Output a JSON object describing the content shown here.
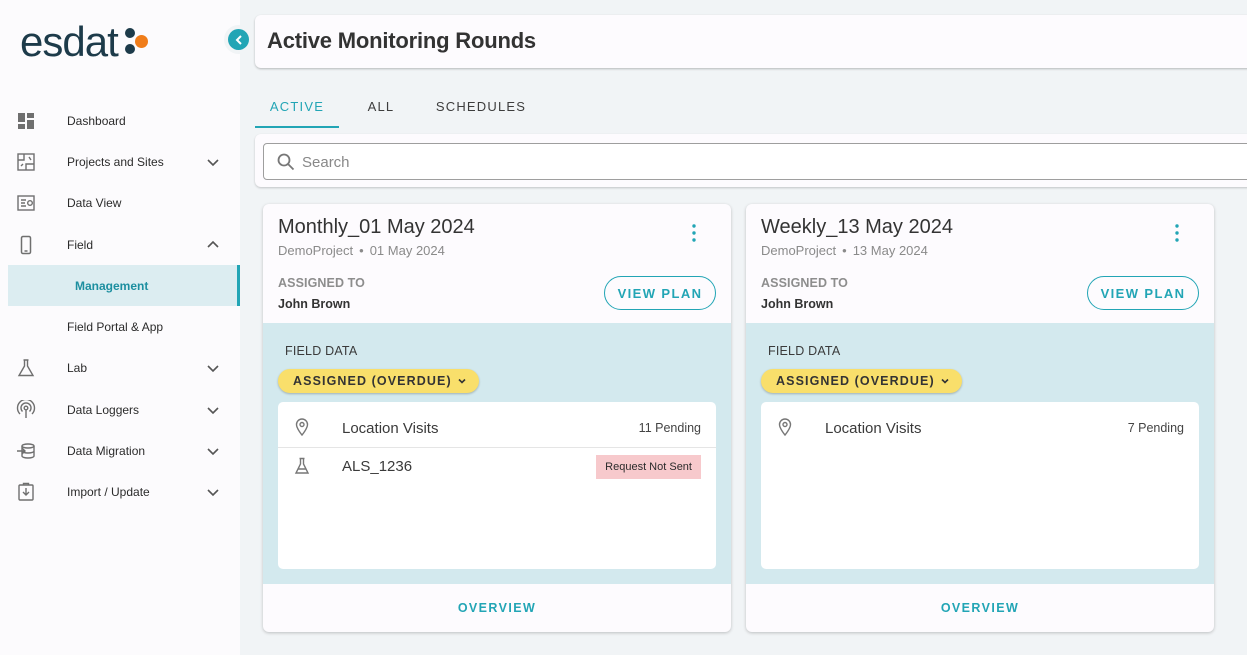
{
  "brand": {
    "logo_text": "esdat",
    "accent": "#22a5b5",
    "logo_dot_color": "#f07d1a"
  },
  "sidebar": {
    "items": [
      {
        "label": "Dashboard",
        "icon": "dashboard-icon",
        "expandable": false
      },
      {
        "label": "Projects and Sites",
        "icon": "map-icon",
        "expandable": true
      },
      {
        "label": "Data View",
        "icon": "data-view-icon",
        "expandable": false
      },
      {
        "label": "Field",
        "icon": "mobile-icon",
        "expandable": true,
        "expanded": true
      },
      {
        "label": "Management",
        "sub": true,
        "active": true
      },
      {
        "label": "Field Portal & App",
        "sub": true
      },
      {
        "label": "Lab",
        "icon": "flask-icon",
        "expandable": true
      },
      {
        "label": "Data Loggers",
        "icon": "antenna-icon",
        "expandable": true
      },
      {
        "label": "Data Migration",
        "icon": "migration-icon",
        "expandable": true
      },
      {
        "label": "Import / Update",
        "icon": "import-icon",
        "expandable": true
      }
    ]
  },
  "header": {
    "title": "Active Monitoring Rounds"
  },
  "tabs": [
    {
      "label": "ACTIVE",
      "active": true
    },
    {
      "label": "ALL"
    },
    {
      "label": "SCHEDULES"
    }
  ],
  "search": {
    "placeholder": "Search",
    "value": ""
  },
  "cards": [
    {
      "title": "Monthly_01 May 2024",
      "project": "DemoProject",
      "date": "01 May 2024",
      "assigned_label": "ASSIGNED TO",
      "assigned_name": "John Brown",
      "view_plan_label": "VIEW PLAN",
      "field_data_label": "FIELD DATA",
      "status": "ASSIGNED (OVERDUE)",
      "rows": [
        {
          "icon": "location-pin-icon",
          "name": "Location Visits",
          "status": "11 Pending"
        },
        {
          "icon": "flask-icon",
          "name": "ALS_1236",
          "badge": "Request Not Sent"
        }
      ],
      "overview_label": "OVERVIEW"
    },
    {
      "title": "Weekly_13 May 2024",
      "project": "DemoProject",
      "date": "13 May 2024",
      "assigned_label": "ASSIGNED TO",
      "assigned_name": "John Brown",
      "view_plan_label": "VIEW PLAN",
      "field_data_label": "FIELD DATA",
      "status": "ASSIGNED (OVERDUE)",
      "rows": [
        {
          "icon": "location-pin-icon",
          "name": "Location Visits",
          "status": "7 Pending"
        }
      ],
      "overview_label": "OVERVIEW"
    }
  ]
}
